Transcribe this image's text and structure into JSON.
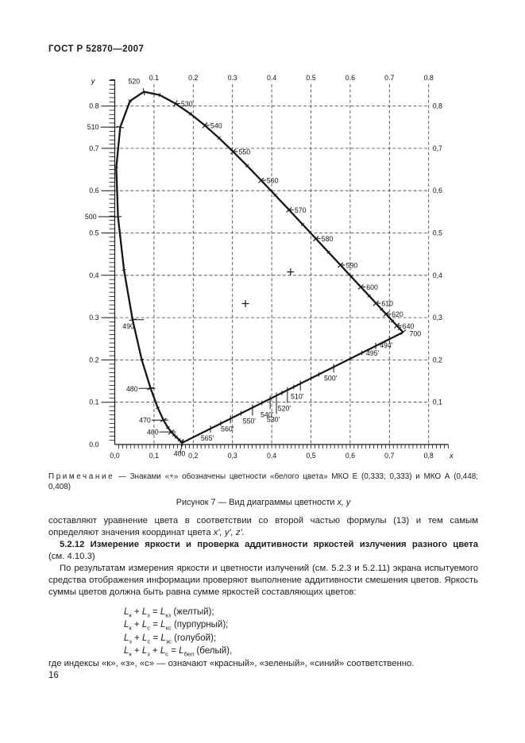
{
  "page": {
    "header": "ГОСТ Р 52870—2007",
    "number": "16"
  },
  "figure": {
    "note_label": "Примечание",
    "note_text": " — Знаками «+»  обозначены цветности «белого цвета» МКО Е (0,333; 0,333) и МКО А (0,448; 0,408)",
    "caption_main": "Рисунок 7 — Вид диаграммы цветности",
    "caption_vars": "x, y"
  },
  "body": {
    "p1_pre": "составляют уравнение цвета в соответствии со второй частью формулы (13) и тем самым определяют значения координат цвета ",
    "p1_vars": "x', y',  z'.",
    "h5212_bold": "5.2.12 Измерение  яркости  и  проверка  аддитивности яркостей  излучения разного цвета",
    "h5212_rest": "(см. 4.10.3)",
    "p2": "По  результатам измерения яркости и цветности излучений (см. 5.2.3 и  5.2.11) экрана испытуемого средства отображения информации проверяют выполнение аддитивности смешения цветов. Яркость суммы цветов должна быть равна сумме яркостей составляющих цветов:",
    "formulas": [
      "L_{к} + L_{з} = L_{кз} (желтый);",
      "L_{к} + L_{с} = L_{кс} (пурпурный);",
      "L_{з} + L_{с} = L_{зс} (голубой);",
      "L_{к} + L_{з} + L_{с} = L_{бел}  (белый),"
    ],
    "where_line": "где индексы «к», «з», «с» — означают «красный», «зеленый», «синий» соответственно."
  },
  "chart_data": {
    "type": "line",
    "title": "Вид диаграммы цветности x, y",
    "xlabel": "x",
    "ylabel": "y",
    "xlim": [
      0,
      0.85
    ],
    "ylim": [
      0,
      0.862
    ],
    "grid": true,
    "grid_step": 0.1,
    "ticks": {
      "top": [
        "0.1",
        "0.2",
        "0.3",
        "0.4",
        "0.5",
        "0.6",
        "0.7",
        "0.8"
      ],
      "bottom": [
        "0,0",
        "0,1",
        "0,2",
        "0,3",
        "0,4",
        "0,5",
        "0,6",
        "0,7",
        "0,8"
      ],
      "left": [
        "0.0",
        "0.1",
        "0.2",
        "0.3",
        "0.4",
        "0.5",
        "0.6",
        "0.7",
        "0.8"
      ],
      "right": [
        "0,1",
        "0,2",
        "0,3",
        "0,4",
        "0,5",
        "0,6",
        "0,7",
        "0,8"
      ]
    },
    "locus": [
      [
        400,
        0.1733,
        0.0048
      ],
      [
        420,
        0.1714,
        0.0051
      ],
      [
        430,
        0.1689,
        0.0069
      ],
      [
        440,
        0.1644,
        0.0109
      ],
      [
        450,
        0.1566,
        0.0177
      ],
      [
        455,
        0.151,
        0.0227
      ],
      [
        460,
        0.144,
        0.0297
      ],
      [
        465,
        0.1355,
        0.0399
      ],
      [
        470,
        0.1241,
        0.0578
      ],
      [
        475,
        0.1096,
        0.0868
      ],
      [
        480,
        0.0913,
        0.1327
      ],
      [
        485,
        0.0687,
        0.2007
      ],
      [
        490,
        0.0454,
        0.295
      ],
      [
        495,
        0.0235,
        0.4127
      ],
      [
        500,
        0.0082,
        0.5384
      ],
      [
        505,
        0.0039,
        0.6548
      ],
      [
        510,
        0.0139,
        0.7502
      ],
      [
        515,
        0.0389,
        0.812
      ],
      [
        520,
        0.0743,
        0.8338
      ],
      [
        525,
        0.1142,
        0.8262
      ],
      [
        530,
        0.1547,
        0.8059
      ],
      [
        535,
        0.1929,
        0.7816
      ],
      [
        540,
        0.2296,
        0.7543
      ],
      [
        545,
        0.2658,
        0.7243
      ],
      [
        550,
        0.3016,
        0.6923
      ],
      [
        555,
        0.3373,
        0.6589
      ],
      [
        560,
        0.3731,
        0.6245
      ],
      [
        565,
        0.4087,
        0.5896
      ],
      [
        570,
        0.4441,
        0.5547
      ],
      [
        575,
        0.4788,
        0.5202
      ],
      [
        580,
        0.5125,
        0.4866
      ],
      [
        585,
        0.5448,
        0.4544
      ],
      [
        590,
        0.5752,
        0.4242
      ],
      [
        595,
        0.6029,
        0.3965
      ],
      [
        600,
        0.627,
        0.3725
      ],
      [
        605,
        0.6482,
        0.3514
      ],
      [
        610,
        0.6658,
        0.334
      ],
      [
        615,
        0.6801,
        0.3197
      ],
      [
        620,
        0.6915,
        0.3083
      ],
      [
        630,
        0.7079,
        0.292
      ],
      [
        640,
        0.719,
        0.2809
      ],
      [
        650,
        0.726,
        0.274
      ],
      [
        700,
        0.7347,
        0.2653
      ]
    ],
    "purple_line": {
      "from": [
        0.1733,
        0.0048
      ],
      "to": [
        0.7347,
        0.2653
      ]
    },
    "spectral_labels": [
      {
        "text": "520",
        "wl": 520,
        "pos": "top"
      },
      {
        "text": "530",
        "wl": 530,
        "pos": "right"
      },
      {
        "text": "540",
        "wl": 540,
        "pos": "right"
      },
      {
        "text": "550",
        "wl": 550,
        "pos": "right"
      },
      {
        "text": "560",
        "wl": 560,
        "pos": "right"
      },
      {
        "text": "570",
        "wl": 570,
        "pos": "right"
      },
      {
        "text": "580",
        "wl": 580,
        "pos": "right"
      },
      {
        "text": "590",
        "wl": 590,
        "pos": "right"
      },
      {
        "text": "600",
        "wl": 600,
        "pos": "right"
      },
      {
        "text": "610",
        "wl": 610,
        "pos": "right"
      },
      {
        "text": "620",
        "wl": 620,
        "pos": "right"
      },
      {
        "text": "640",
        "wl": 640,
        "pos": "right"
      },
      {
        "text": "700",
        "wl": 700,
        "pos": "right-end"
      },
      {
        "text": "510",
        "wl": 510,
        "pos": "left-out"
      },
      {
        "text": "500",
        "wl": 500,
        "pos": "left-out"
      },
      {
        "text": "490",
        "wl": 490,
        "pos": "left-near"
      },
      {
        "text": "480",
        "wl": 480,
        "pos": "left-lead"
      },
      {
        "text": "470",
        "wl": 470,
        "pos": "left-lead"
      },
      {
        "text": "460",
        "wl": 460,
        "pos": "left-lead"
      },
      {
        "text": "400",
        "wl": 400,
        "pos": "below-axis"
      }
    ],
    "purple_labels": [
      {
        "text": "565'",
        "u": 0.244,
        "drop": 8
      },
      {
        "text": "560'",
        "u": 0.295,
        "drop": 9
      },
      {
        "text": "550'",
        "u": 0.351,
        "drop": 13
      },
      {
        "text": "540'",
        "u": 0.396,
        "drop": 16
      },
      {
        "text": "530'",
        "u": 0.412,
        "drop": 26
      },
      {
        "text": "520'",
        "u": 0.44,
        "drop": 19
      },
      {
        "text": "510'",
        "u": 0.473,
        "drop": 12
      },
      {
        "text": "500'",
        "u": 0.558,
        "drop": 10
      },
      {
        "text": "495'",
        "u": 0.665,
        "drop": 5
      },
      {
        "text": "494'",
        "u": 0.7,
        "drop": 4
      }
    ],
    "purple_minor_ticks": [
      0.27,
      0.322,
      0.375,
      0.426,
      0.456,
      0.5,
      0.52,
      0.6,
      0.63
    ],
    "white_points": [
      {
        "name": "МКО Е",
        "x": 0.333,
        "y": 0.333
      },
      {
        "name": "МКО А",
        "x": 0.448,
        "y": 0.408
      }
    ]
  }
}
